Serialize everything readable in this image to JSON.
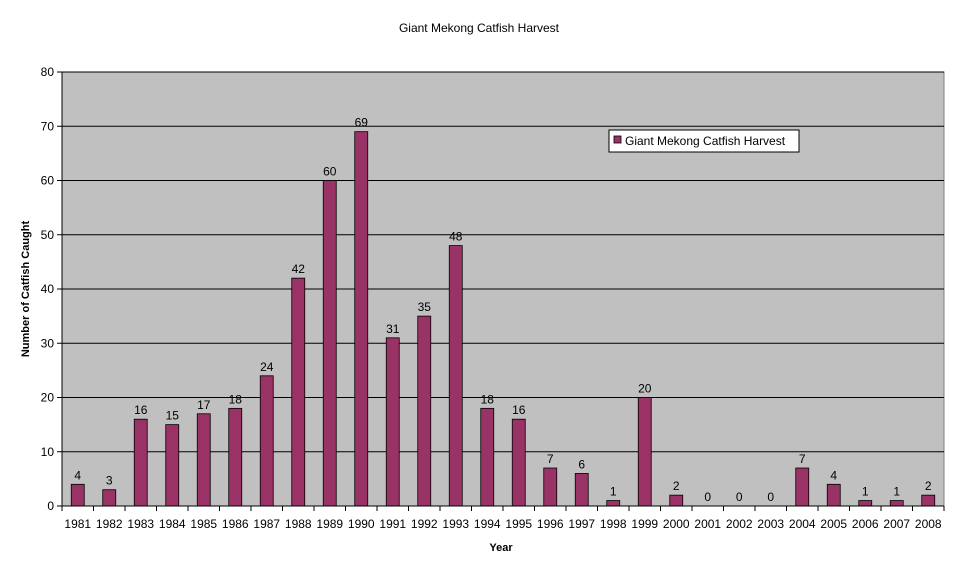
{
  "chart_data": {
    "type": "bar",
    "title": "Giant Mekong Catfish Harvest",
    "xlabel": "Year",
    "ylabel": "Number of Catfish Caught",
    "categories": [
      "1981",
      "1982",
      "1983",
      "1984",
      "1985",
      "1986",
      "1987",
      "1988",
      "1989",
      "1990",
      "1991",
      "1992",
      "1993",
      "1994",
      "1995",
      "1996",
      "1997",
      "1998",
      "1999",
      "2000",
      "2001",
      "2002",
      "2003",
      "2004",
      "2005",
      "2006",
      "2007",
      "2008"
    ],
    "series": [
      {
        "name": "Giant Mekong Catfish Harvest",
        "values": [
          4,
          3,
          16,
          15,
          17,
          18,
          24,
          42,
          60,
          69,
          31,
          35,
          48,
          18,
          16,
          7,
          6,
          1,
          20,
          2,
          0,
          0,
          0,
          7,
          4,
          1,
          1,
          2
        ]
      }
    ],
    "ylim": [
      0,
      80
    ],
    "yticks": [
      0,
      10,
      20,
      30,
      40,
      50,
      60,
      70,
      80
    ],
    "data_labels": true,
    "grid": "horizontal",
    "legend": "top-right",
    "colors": {
      "bar": "#993366",
      "plot_background": "#c0c0c0",
      "gridline": "#000000"
    }
  }
}
